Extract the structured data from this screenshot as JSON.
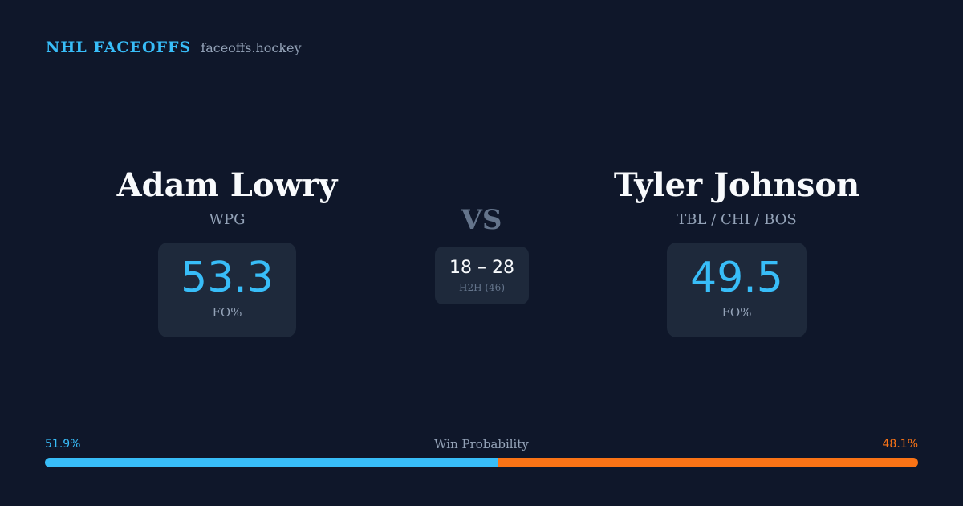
{
  "brand": {
    "title": "NHL FACEOFFS",
    "domain": "faceoffs.hockey"
  },
  "player_left": {
    "name": "Adam Lowry",
    "team": "WPG",
    "fo_value": "53.3",
    "fo_label": "FO%"
  },
  "player_right": {
    "name": "Tyler Johnson",
    "team": "TBL / CHI / BOS",
    "fo_value": "49.5",
    "fo_label": "FO%"
  },
  "vs_label": "VS",
  "h2h": {
    "score": "18 – 28",
    "label": "H2H (46)"
  },
  "win_probability": {
    "title": "Win Probability",
    "left_label": "51.9%",
    "right_label": "48.1%",
    "left_value": 51.9,
    "right_value": 48.1
  },
  "colors": {
    "background": "#0f172a",
    "card": "#1e293b",
    "accent_left": "#38bdf8",
    "accent_right": "#f97316",
    "muted": "#94a3b8"
  }
}
